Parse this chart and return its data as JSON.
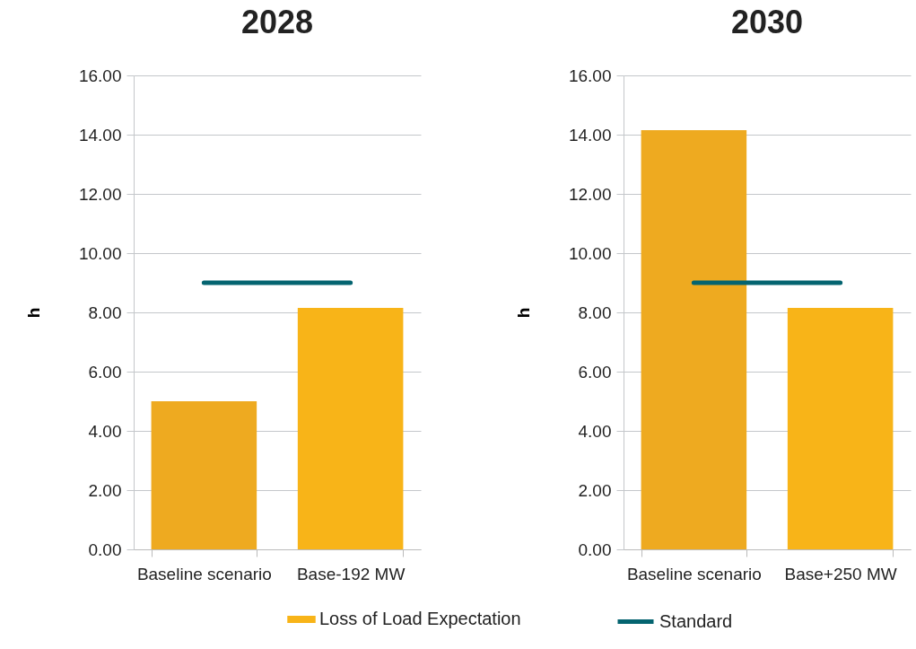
{
  "chart_data": [
    {
      "type": "bar",
      "title": "2028",
      "ylabel": "h",
      "categories": [
        "Baseline scenario",
        "Base-192 MW"
      ],
      "series": [
        {
          "name": "Loss of Load Expectation",
          "color": "#f8b418",
          "colors": [
            "#eeaa20",
            "#f8b418"
          ],
          "values": [
            5.0,
            8.15
          ]
        },
        {
          "name": "Standard",
          "type": "line",
          "color": "#046470",
          "values": [
            9.0,
            9.0
          ]
        }
      ],
      "ylim": [
        0,
        16
      ],
      "yticks": [
        {
          "value": 0,
          "label": "0.00"
        },
        {
          "value": 2,
          "label": "2.00"
        },
        {
          "value": 4,
          "label": "4.00"
        },
        {
          "value": 6,
          "label": "6.00"
        },
        {
          "value": 8,
          "label": "8.00"
        },
        {
          "value": 10,
          "label": "10.00"
        },
        {
          "value": 12,
          "label": "12.00"
        },
        {
          "value": 14,
          "label": "14.00"
        },
        {
          "value": 16,
          "label": "16.00"
        }
      ],
      "grid": "y",
      "legend": "bottom"
    },
    {
      "type": "bar",
      "title": "2030",
      "ylabel": "h",
      "categories": [
        "Baseline scenario",
        "Base+250 MW"
      ],
      "series": [
        {
          "color": "#f8b418",
          "colors": [
            "#eeaa20",
            "#f8b418"
          ],
          "values": [
            14.15,
            8.15
          ]
        },
        {
          "type": "line",
          "color": "#046470",
          "values": [
            9.0,
            9.0
          ]
        }
      ],
      "ylim": [
        0,
        16
      ],
      "yticks": [
        {
          "value": 0,
          "label": "0.00"
        },
        {
          "value": 2,
          "label": "2.00"
        },
        {
          "value": 4,
          "label": "4.00"
        },
        {
          "value": 6,
          "label": "6.00"
        },
        {
          "value": 8,
          "label": "8.00"
        },
        {
          "value": 10,
          "label": "10.00"
        },
        {
          "value": 12,
          "label": "12.00"
        },
        {
          "value": 14,
          "label": "14.00"
        },
        {
          "value": 16,
          "label": "16.00"
        }
      ],
      "grid": "y"
    }
  ]
}
